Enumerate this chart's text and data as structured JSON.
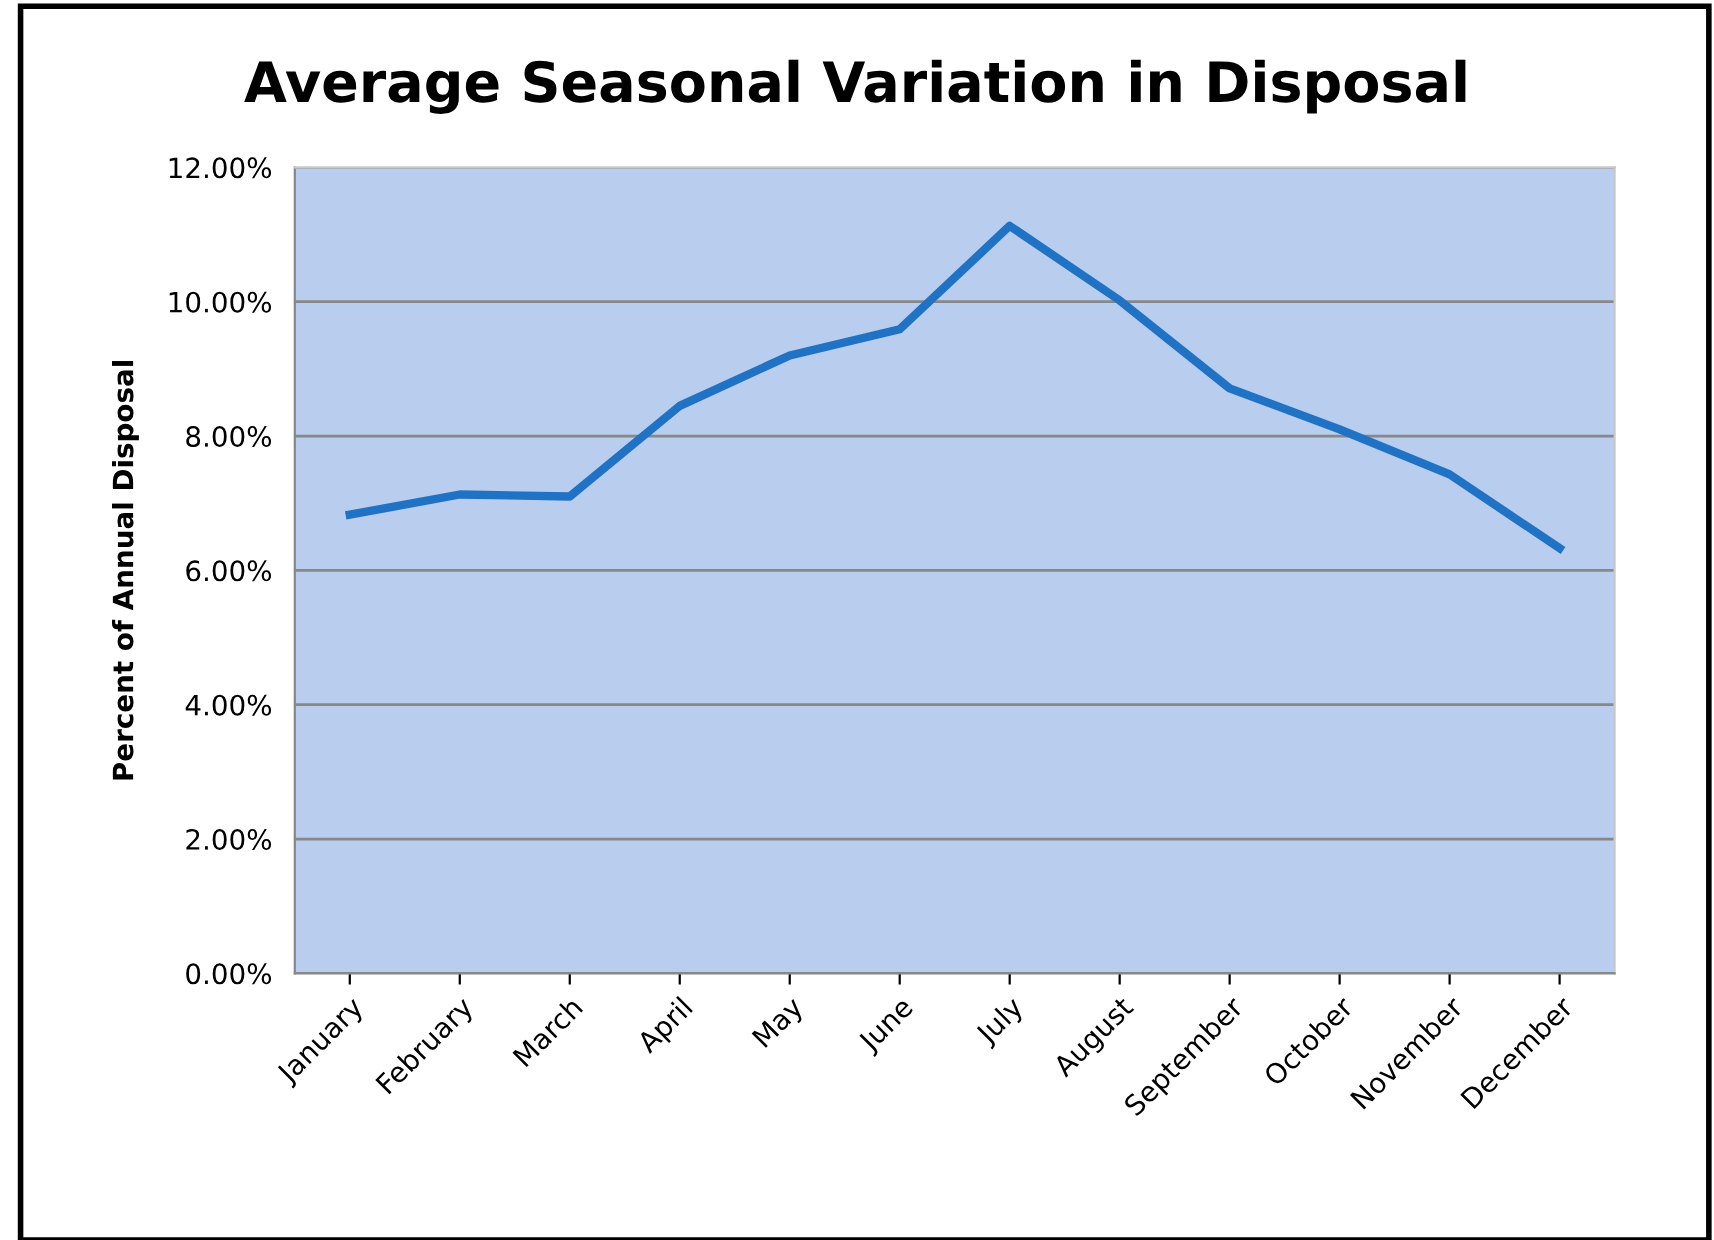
{
  "chart_data": {
    "type": "line",
    "title": "Average Seasonal Variation in Disposal",
    "ylabel": "Percent of Annual Disposal",
    "categories": [
      "January",
      "February",
      "March",
      "April",
      "May",
      "June",
      "July",
      "August",
      "September",
      "October",
      "November",
      "December"
    ],
    "series": [
      {
        "color": "#1f72c4",
        "values": [
          6.83,
          7.13,
          7.1,
          8.45,
          9.2,
          9.59,
          11.13,
          10.02,
          8.71,
          8.1,
          7.43,
          6.33
        ]
      }
    ],
    "ylim": [
      0,
      12
    ],
    "yticks": [
      {
        "value": 0,
        "label": "0.00%"
      },
      {
        "value": 2,
        "label": "2.00%"
      },
      {
        "value": 4,
        "label": "4.00%"
      },
      {
        "value": 6,
        "label": "6.00%"
      },
      {
        "value": 8,
        "label": "8.00%"
      },
      {
        "value": 10,
        "label": "10.00%"
      },
      {
        "value": 12,
        "label": "12.00%"
      }
    ],
    "grid": "y",
    "marker": "none",
    "line_style": "solid"
  }
}
